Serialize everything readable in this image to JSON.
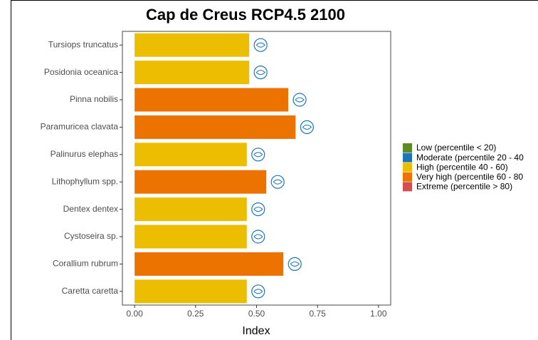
{
  "chart_data": {
    "type": "barh",
    "title": "Cap de Creus RCP4.5 2100",
    "categories": [
      "Tursiops truncatus",
      "Posidonia oceanica",
      "Pinna nobilis",
      "Paramuricea clavata",
      "Palinurus elephas",
      "Lithophyllum spp.",
      "Dentex dentex",
      "Cystoseira sp.",
      "Corallium rubrum",
      "Caretta caretta"
    ],
    "values": [
      0.47,
      0.47,
      0.63,
      0.66,
      0.46,
      0.54,
      0.46,
      0.46,
      0.61,
      0.46
    ],
    "colors": [
      "#ecbd00",
      "#ecbd00",
      "#ec7300",
      "#ec7300",
      "#ecbd00",
      "#ec7300",
      "#ecbd00",
      "#ecbd00",
      "#ec7300",
      "#ecbd00"
    ],
    "xlim": [
      -0.05,
      1.05
    ],
    "xticks": [
      {
        "value": 0,
        "label": "0.00"
      },
      {
        "value": 0.25,
        "label": "0.25"
      },
      {
        "value": 0.5,
        "label": "0.50"
      },
      {
        "value": 0.75,
        "label": "0.75"
      },
      {
        "value": 1,
        "label": "1.00"
      }
    ],
    "xlabel": "Index",
    "legend": [
      {
        "name": "Low (percentile < 20)",
        "color": "#5d8c26"
      },
      {
        "name": "Moderate (percentile 20 - 40",
        "color": "#1a74b8"
      },
      {
        "name": "High (percentile 40 - 60)",
        "color": "#ecbd00"
      },
      {
        "name": "Very high (percentile 60 - 80",
        "color": "#ec7300"
      },
      {
        "name": "Extreme (percentile > 80)",
        "color": "#d05050"
      }
    ]
  }
}
